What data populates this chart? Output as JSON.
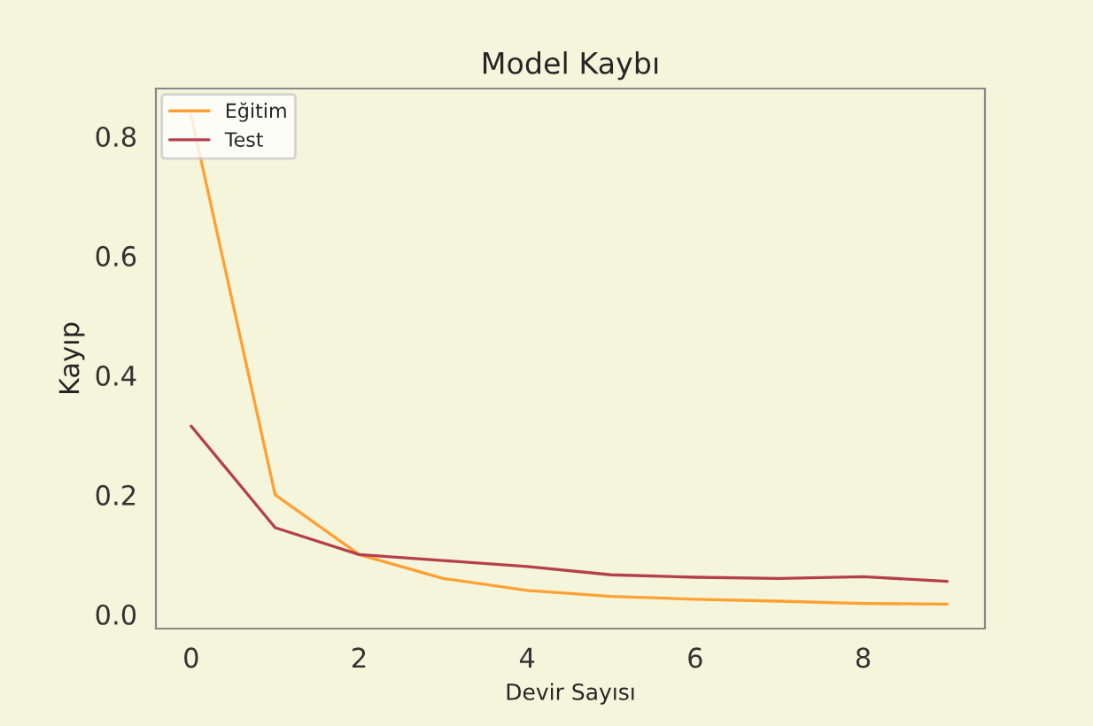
{
  "chart_data": {
    "type": "line",
    "title": "Model Kaybı",
    "xlabel": "Devir Sayısı",
    "ylabel": "Kayıp",
    "x": [
      0,
      1,
      2,
      3,
      4,
      5,
      6,
      7,
      8,
      9
    ],
    "series": [
      {
        "name": "Eğitim",
        "color": "#ffa033",
        "values": [
          0.835,
          0.2,
          0.1,
          0.06,
          0.04,
          0.03,
          0.025,
          0.022,
          0.018,
          0.017
        ]
      },
      {
        "name": "Test",
        "color": "#b5404a",
        "values": [
          0.315,
          0.145,
          0.1,
          0.09,
          0.08,
          0.066,
          0.062,
          0.06,
          0.063,
          0.055
        ]
      }
    ],
    "xlim": [
      -0.42,
      9.45
    ],
    "ylim": [
      -0.024,
      0.88
    ],
    "xticks": [
      0,
      2,
      4,
      6,
      8
    ],
    "yticks": [
      {
        "value": 0,
        "label": "0.0"
      },
      0.2,
      0.4,
      0.6,
      0.8
    ],
    "grid": false,
    "legend": "top left",
    "marker": "none",
    "line_style": "solid"
  }
}
